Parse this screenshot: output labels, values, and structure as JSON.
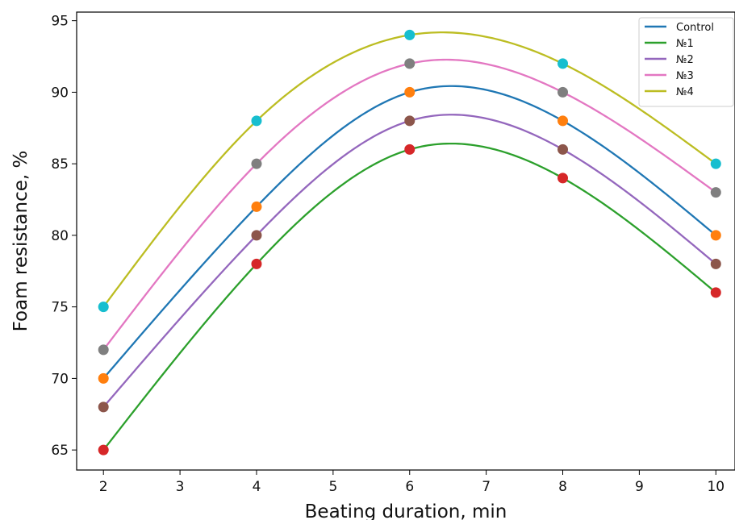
{
  "chart_data": {
    "type": "line",
    "xlabel": "Beating duration, min",
    "ylabel": "Foam resistance, %",
    "xlim": [
      1.65,
      10.25
    ],
    "ylim": [
      63.6,
      95.6
    ],
    "xticks": [
      "2",
      "3",
      "4",
      "5",
      "6",
      "7",
      "8",
      "9",
      "10"
    ],
    "yticks": [
      "65",
      "70",
      "75",
      "80",
      "85",
      "90",
      "95"
    ],
    "grid": false,
    "legend_position": "top-right",
    "x": [
      2,
      4,
      6,
      8,
      10
    ],
    "series": [
      {
        "name": "Control",
        "color": "#1f77b4",
        "marker_color": "#ff7f0e",
        "values": [
          70,
          82,
          90,
          88,
          80
        ]
      },
      {
        "name": "№1",
        "color": "#2ca02c",
        "marker_color": "#d62728",
        "values": [
          65,
          78,
          86,
          84,
          76
        ]
      },
      {
        "name": "№2",
        "color": "#9467bd",
        "marker_color": "#8c564b",
        "values": [
          68,
          80,
          88,
          86,
          78
        ]
      },
      {
        "name": "№3",
        "color": "#e377c2",
        "marker_color": "#7f7f7f",
        "values": [
          72,
          85,
          92,
          90,
          83
        ]
      },
      {
        "name": "№4",
        "color": "#bcbd22",
        "marker_color": "#17becf",
        "values": [
          75,
          88,
          94,
          92,
          85
        ]
      }
    ]
  }
}
